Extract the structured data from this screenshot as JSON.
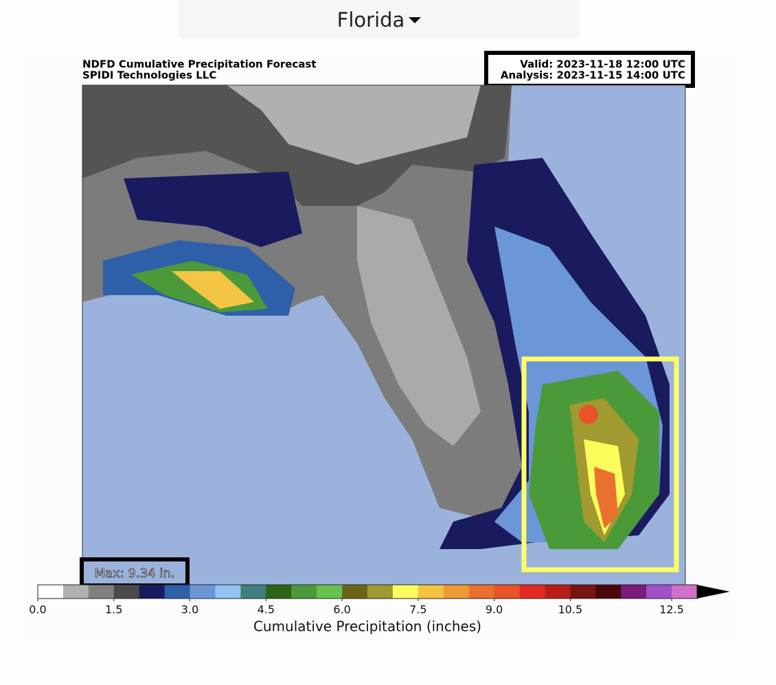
{
  "dropdown": {
    "label": "Florida"
  },
  "figure": {
    "title_line1": "NDFD Cumulative Precipitation Forecast",
    "title_line2": "SPIDI Technologies LLC",
    "valid": "Valid: 2023-11-18 12:00 UTC",
    "analysis": "Analysis: 2023-11-15 14:00 UTC",
    "max_label": "Max: 9.34 in."
  },
  "colorbar": {
    "label": "Cumulative Precipitation (inches)",
    "lim": [
      0,
      13
    ],
    "ticks": [
      {
        "value": 0,
        "label": "0.0"
      },
      {
        "value": 1.5,
        "label": "1.5"
      },
      {
        "value": 3,
        "label": "3.0"
      },
      {
        "value": 4.5,
        "label": "4.5"
      },
      {
        "value": 6,
        "label": "6.0"
      },
      {
        "value": 7.5,
        "label": "7.5"
      },
      {
        "value": 9,
        "label": "9.0"
      },
      {
        "value": 10.5,
        "label": "10.5"
      },
      {
        "value": 12.5,
        "label": "12.5"
      }
    ],
    "colors": [
      "#ffffff",
      "#b0b0b0",
      "#808080",
      "#4a4a4a",
      "#1a1a5e",
      "#2e5fa8",
      "#6b96d8",
      "#8fc4f0",
      "#3e7f80",
      "#2a6414",
      "#4a9a3a",
      "#66c24c",
      "#6b6418",
      "#a09a30",
      "#fcfc5c",
      "#f4c444",
      "#ee9a34",
      "#ea7030",
      "#e85428",
      "#e02a22",
      "#b81e18",
      "#7a1410",
      "#4a0808",
      "#7a1a7a",
      "#a050c8",
      "#d070c8"
    ]
  }
}
